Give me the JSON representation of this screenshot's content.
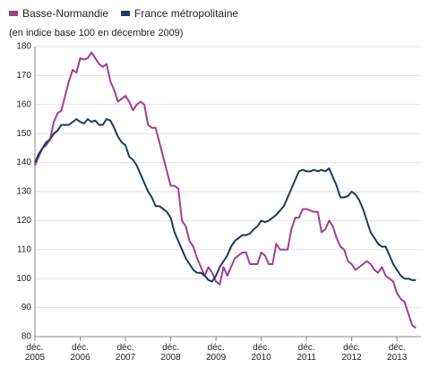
{
  "chart_data": {
    "type": "line",
    "subtitle": "(en indice base 100 en décembre 2009)",
    "categories": [
      "déc. 2005",
      null,
      null,
      null,
      null,
      null,
      null,
      null,
      null,
      null,
      null,
      null,
      "déc. 2006",
      null,
      null,
      null,
      null,
      null,
      null,
      null,
      null,
      null,
      null,
      null,
      "déc. 2007",
      null,
      null,
      null,
      null,
      null,
      null,
      null,
      null,
      null,
      null,
      null,
      "déc. 2008",
      null,
      null,
      null,
      null,
      null,
      null,
      null,
      null,
      null,
      null,
      null,
      "déc. 2009",
      null,
      null,
      null,
      null,
      null,
      null,
      null,
      null,
      null,
      null,
      null,
      "déc. 2010",
      null,
      null,
      null,
      null,
      null,
      null,
      null,
      null,
      null,
      null,
      null,
      "déc. 2011",
      null,
      null,
      null,
      null,
      null,
      null,
      null,
      null,
      null,
      null,
      null,
      "déc. 2012",
      null,
      null,
      null,
      null,
      null,
      null,
      null,
      null,
      null,
      null,
      null,
      "déc. 2013",
      null,
      null,
      null,
      null,
      null
    ],
    "series": [
      {
        "name": "Basse-Normandie",
        "color": "#a0408f",
        "values": [
          139,
          142,
          145,
          146,
          148,
          154,
          157,
          158,
          163,
          168,
          172,
          171,
          176,
          175.5,
          176,
          178,
          176,
          174,
          173,
          174,
          168,
          165,
          161,
          162,
          163,
          161,
          158,
          160,
          161,
          160,
          153,
          152,
          152,
          147,
          142,
          137,
          132,
          132,
          131,
          120,
          118,
          113,
          111,
          107,
          104,
          101,
          104,
          102,
          99,
          98,
          104,
          101,
          104,
          107,
          108,
          109,
          109,
          105,
          105,
          105,
          109,
          108,
          105,
          105,
          112,
          110,
          110,
          110,
          117,
          121,
          121,
          124,
          124,
          123.5,
          123,
          123,
          116,
          117,
          120,
          118,
          114,
          111,
          110,
          106,
          105,
          103,
          104,
          105,
          106,
          105,
          103,
          102,
          104,
          101,
          100,
          99,
          95,
          93,
          92,
          88,
          84,
          83
        ]
      },
      {
        "name": "France métropolitaine",
        "color": "#1f3864",
        "values": [
          140,
          143,
          145,
          147,
          148,
          150,
          151,
          153,
          153,
          153,
          154,
          155,
          154,
          153.5,
          155,
          154,
          154.5,
          153,
          153,
          155,
          154.5,
          152,
          149,
          147,
          146,
          142,
          141,
          139,
          136,
          133,
          130,
          128,
          125,
          125,
          124,
          123,
          121,
          116,
          113,
          110,
          107,
          105,
          103,
          102,
          102,
          101,
          99.5,
          99,
          101,
          104,
          106,
          108,
          111,
          113,
          114,
          115,
          115,
          115.5,
          117,
          118,
          120,
          119.5,
          120,
          121,
          122,
          123.5,
          125,
          128,
          131,
          134,
          137,
          137.5,
          137,
          137,
          137.5,
          137,
          137.5,
          137,
          138,
          135,
          132,
          128,
          128,
          128.5,
          130,
          129,
          127,
          124,
          120,
          116,
          114,
          112,
          111,
          111,
          108,
          105,
          103,
          101,
          100,
          100,
          99.5,
          99.5
        ]
      }
    ],
    "ylim": [
      80,
      180
    ],
    "yticks": [
      80,
      90,
      100,
      110,
      120,
      130,
      140,
      150,
      160,
      170,
      180
    ],
    "grid": true
  }
}
